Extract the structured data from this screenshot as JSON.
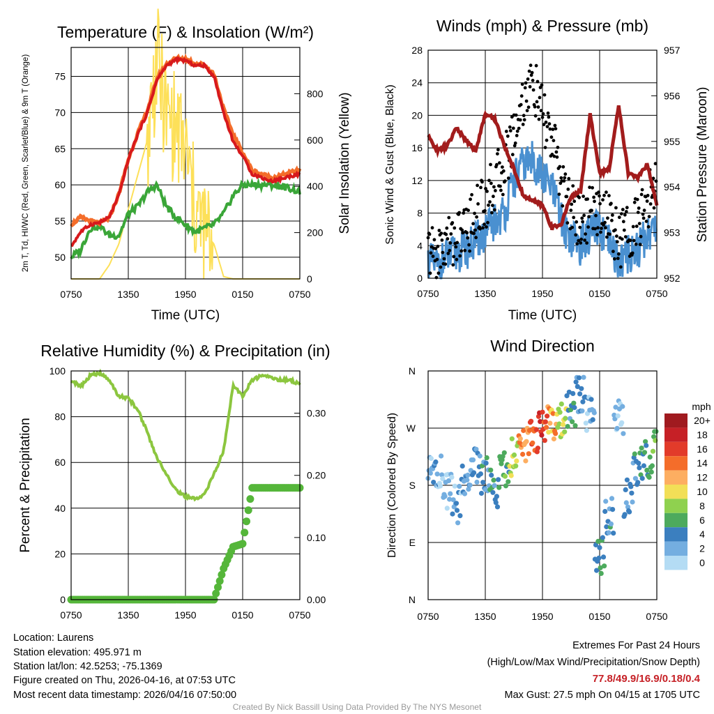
{
  "x_ticks": [
    "0750",
    "1350",
    "1950",
    "0150",
    "0750"
  ],
  "footer": {
    "location": "Location: Laurens",
    "elevation": "Station elevation: 495.971 m",
    "latlon": "Station lat/lon: 42.5253; -75.1369",
    "created": "Figure created on Thu, 2026-04-16, at 07:53 UTC",
    "recent": "Most recent data timestamp: 2026/04/16 07:50:00",
    "extremes_title": "Extremes For Past 24 Hours",
    "extremes_legend": "(High/Low/Max Wind/Precipitation/Snow Depth)",
    "extremes_values": "77.8/49.9/16.9/0.18/0.4",
    "max_gust": "Max Gust: 27.5 mph On 04/15 at 1705 UTC",
    "credit": "Created By Nick Bassill Using Data Provided By The NYS Mesonet"
  },
  "colors": {
    "temp_red": "#d7191c",
    "temp_orange": "#f46d2a",
    "dewpoint_green": "#3aa638",
    "insolation_yellow": "#fde059",
    "rh_green": "#8cc63f",
    "precip_green": "#55b63a",
    "wind_blue": "#4a90d0",
    "gust_black": "#000000",
    "pressure_maroon": "#a21c1c"
  },
  "chart_data": [
    {
      "type": "line",
      "title": "Temperature (F) & Insolation (W/m²)",
      "xlabel": "Time (UTC)",
      "ylabel": "2m T, Td, HI/WC (Red, Green, Scarlet/Blue) & 9m T (Orange)",
      "ylabel_right": "Solar Insolation (Yellow)",
      "ylim": [
        47,
        79
      ],
      "yticks": [
        50,
        55,
        60,
        65,
        70,
        75
      ],
      "ylim_right": [
        0,
        1000
      ],
      "yticks_right": [
        0,
        200,
        400,
        600,
        800
      ],
      "x_hours": [
        0,
        1,
        2,
        3,
        4,
        5,
        6,
        7,
        8,
        9,
        10,
        11,
        12,
        13,
        14,
        15,
        16,
        17,
        18,
        19,
        20,
        21,
        22,
        23,
        24
      ],
      "series": [
        {
          "name": "2m Temperature",
          "values": [
            51.5,
            53.5,
            54.5,
            54.8,
            55.5,
            58.5,
            63.5,
            67,
            70,
            74.5,
            76.5,
            77.3,
            77.2,
            76.5,
            76.5,
            75,
            70,
            66,
            64,
            61.5,
            61,
            60.5,
            60.8,
            61.2,
            61.5
          ]
        },
        {
          "name": "9m Temperature",
          "values": [
            54.5,
            55.5,
            55,
            54.7,
            55.4,
            58.7,
            63.5,
            67.2,
            70.3,
            74.7,
            76.7,
            77.5,
            77.4,
            76.8,
            76.6,
            75.3,
            70.5,
            67,
            64.5,
            62,
            61.5,
            61,
            61.3,
            61.7,
            62
          ]
        },
        {
          "name": "Dew Point",
          "values": [
            50,
            51,
            54,
            54.3,
            53,
            53,
            56,
            57,
            59,
            60,
            57,
            55.5,
            54.5,
            53.5,
            54,
            54.5,
            56,
            58.5,
            60,
            60,
            60,
            60,
            59.8,
            59.5,
            59
          ]
        },
        {
          "name": "Solar Insolation",
          "values": [
            0,
            0,
            0,
            0,
            60,
            150,
            300,
            450,
            600,
            950,
            700,
            650,
            550,
            300,
            200,
            150,
            10,
            0,
            0,
            0,
            0,
            0,
            0,
            0,
            0
          ]
        }
      ]
    },
    {
      "type": "line",
      "title": "Winds (mph) & Pressure (mb)",
      "xlabel": "Time (UTC)",
      "ylabel": "Sonic Wind & Gust (Blue, Black)",
      "ylabel_right": "Station Pressure (Maroon)",
      "ylim": [
        0,
        28
      ],
      "yticks": [
        0,
        4,
        8,
        12,
        16,
        20,
        24,
        28
      ],
      "ylim_right": [
        952,
        957
      ],
      "yticks_right": [
        952,
        953,
        954,
        955,
        956,
        957
      ],
      "x_hours": [
        0,
        1,
        2,
        3,
        4,
        5,
        6,
        7,
        8,
        9,
        10,
        11,
        12,
        13,
        14,
        15,
        16,
        17,
        18,
        19,
        20,
        21,
        22,
        23,
        24
      ],
      "series": [
        {
          "name": "Sonic Wind",
          "values": [
            2,
            1.5,
            2.5,
            3,
            3.5,
            4.5,
            5.5,
            7,
            8,
            12,
            14,
            14.5,
            12.5,
            11,
            7,
            5,
            4,
            5.5,
            6,
            4,
            2,
            3,
            3.5,
            5.5,
            6.5
          ]
        },
        {
          "name": "Gust",
          "values": [
            3.5,
            3,
            4.5,
            5,
            6,
            8,
            9.5,
            11.5,
            14,
            18,
            22,
            24,
            20,
            17,
            12,
            8.5,
            7,
            8,
            9,
            7,
            4.5,
            6,
            6.5,
            9,
            12
          ]
        },
        {
          "name": "Station Pressure",
          "values": [
            955.1,
            954.8,
            954.9,
            955.3,
            955.0,
            954.8,
            955.6,
            955.5,
            954.9,
            954.4,
            953.8,
            953.7,
            953.6,
            953.1,
            953.2,
            953.8,
            953.9,
            955.6,
            954.3,
            954.4,
            955.8,
            954.3,
            954.2,
            954.5,
            953.6
          ]
        }
      ]
    },
    {
      "type": "line",
      "title": "Relative Humidity (%) & Precipitation (in)",
      "xlabel": "",
      "ylabel": "Percent & Precipitation",
      "ylim": [
        0,
        100
      ],
      "yticks": [
        0,
        20,
        40,
        60,
        80,
        100
      ],
      "ylim_right": [
        0,
        0.368
      ],
      "yticks_right": [
        0.0,
        0.1,
        0.2,
        0.3
      ],
      "x_hours": [
        0,
        1,
        2,
        3,
        4,
        5,
        6,
        7,
        8,
        9,
        10,
        11,
        12,
        13,
        14,
        15,
        16,
        17,
        18,
        19,
        20,
        21,
        22,
        23,
        24
      ],
      "series": [
        {
          "name": "Relative Humidity",
          "values": [
            96,
            93,
            98,
            99,
            96,
            89,
            88,
            83,
            73,
            62,
            55,
            48,
            45,
            44,
            46,
            55,
            65,
            94,
            89,
            96,
            98,
            97,
            96,
            96,
            94
          ]
        },
        {
          "name": "Precipitation",
          "values": [
            0,
            0,
            0,
            0,
            0,
            0,
            0,
            0,
            0,
            0,
            0,
            0,
            0,
            0,
            0,
            0,
            0.05,
            0.085,
            0.09,
            0.18,
            0.18,
            0.18,
            0.18,
            0.18,
            0.18
          ]
        }
      ]
    },
    {
      "type": "scatter",
      "title": "Wind Direction",
      "ylabel": "Direction (Colored By Speed)",
      "yticks": [
        "N",
        "E",
        "S",
        "W",
        "N"
      ],
      "ylim": [
        0,
        360
      ],
      "legend_title": "mph",
      "legend_labels": [
        "20+",
        "18",
        "16",
        "14",
        "12",
        "10",
        "8",
        "6",
        "4",
        "2",
        "0"
      ],
      "legend_colors": [
        "#a01a1f",
        "#c62026",
        "#e23b2a",
        "#f46d2a",
        "#fdae61",
        "#f2df57",
        "#8fd14f",
        "#4daa5d",
        "#3b7fbf",
        "#74aee0",
        "#b4dcf4"
      ],
      "x_hours": [
        0.5,
        1.5,
        2.5,
        3.5,
        4.5,
        5.5,
        6.5,
        7.5,
        8.5,
        9.5,
        10.5,
        11.5,
        12.5,
        13.5,
        14.5,
        15.5,
        16.5,
        17.5,
        18.5,
        19.5,
        20.5,
        21.5,
        22.5,
        23.5
      ],
      "directions": [
        200,
        170,
        150,
        190,
        210,
        195,
        175,
        205,
        225,
        240,
        255,
        268,
        275,
        282,
        300,
        320,
        290,
        70,
        130,
        290,
        160,
        210,
        220,
        235
      ],
      "speeds": [
        2,
        1,
        2,
        3,
        3,
        4,
        4,
        6,
        9,
        13,
        15,
        16,
        12,
        9,
        4,
        3,
        2,
        5,
        4,
        1,
        3,
        4,
        5,
        6
      ]
    }
  ]
}
